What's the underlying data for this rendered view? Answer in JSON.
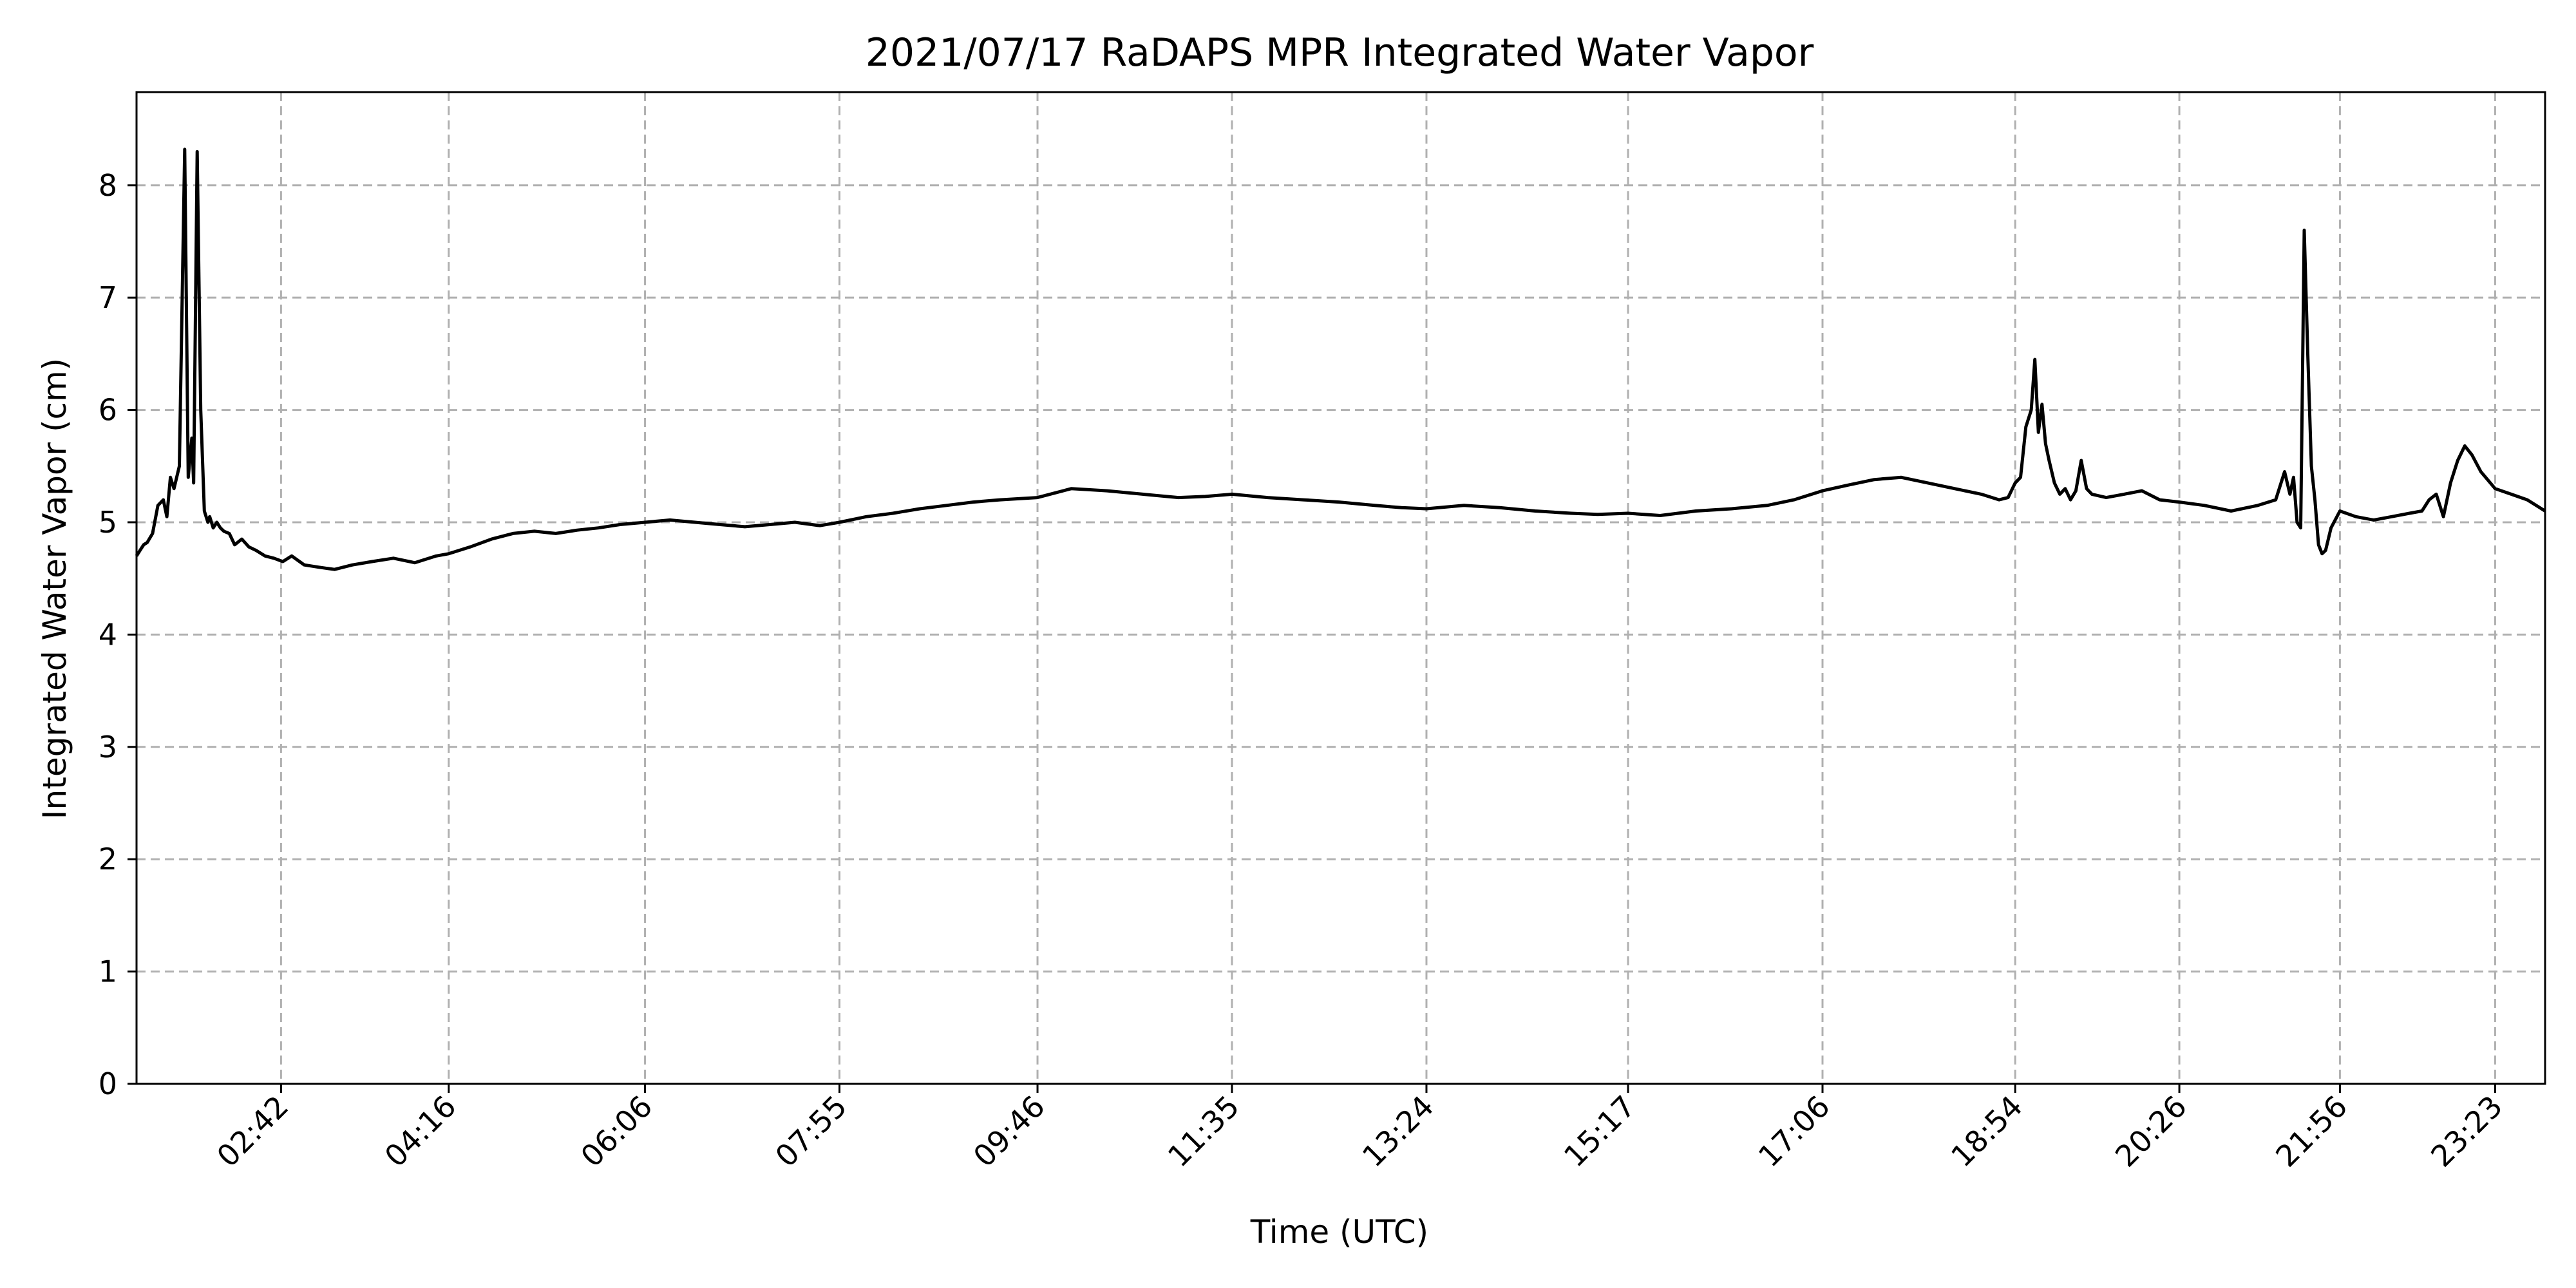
{
  "chart_data": {
    "type": "line",
    "title": "2021/07/17 RaDAPS MPR Integrated Water Vapor",
    "xlabel": "Time (UTC)",
    "ylabel": "Integrated Water Vapor (cm)",
    "xlim": [
      "01:21",
      "23:51"
    ],
    "ylim": [
      0,
      8.83
    ],
    "y_ticks": [
      0,
      1,
      2,
      3,
      4,
      5,
      6,
      7,
      8
    ],
    "x_ticks": [
      "02:42",
      "04:16",
      "06:06",
      "07:55",
      "09:46",
      "11:35",
      "13:24",
      "15:17",
      "17:06",
      "18:54",
      "20:26",
      "21:56",
      "23:23"
    ],
    "grid": true,
    "line_color": "#000000",
    "grid_color": "#b0b0b0",
    "series": [
      {
        "x": [
          "01:21",
          "01:23",
          "01:25",
          "01:27",
          "01:30",
          "01:33",
          "01:36",
          "01:38",
          "01:40",
          "01:42",
          "01:45",
          "01:48",
          "01:50",
          "01:52",
          "01:53",
          "01:55",
          "01:57",
          "01:59",
          "02:01",
          "02:02",
          "02:04",
          "02:06",
          "02:08",
          "02:10",
          "02:13",
          "02:16",
          "02:20",
          "02:24",
          "02:28",
          "02:33",
          "02:38",
          "02:43",
          "02:48",
          "02:55",
          "03:03",
          "03:12",
          "03:22",
          "03:33",
          "03:45",
          "03:57",
          "04:09",
          "04:16",
          "04:28",
          "04:40",
          "04:52",
          "05:04",
          "05:16",
          "05:28",
          "05:40",
          "05:52",
          "06:06",
          "06:20",
          "06:34",
          "06:48",
          "07:02",
          "07:16",
          "07:30",
          "07:44",
          "07:55",
          "08:10",
          "08:25",
          "08:40",
          "08:55",
          "09:10",
          "09:25",
          "09:46",
          "10:05",
          "10:25",
          "10:45",
          "11:05",
          "11:20",
          "11:35",
          "11:55",
          "12:15",
          "12:35",
          "12:55",
          "13:10",
          "13:24",
          "13:45",
          "14:05",
          "14:25",
          "14:45",
          "15:00",
          "15:17",
          "15:35",
          "15:55",
          "16:15",
          "16:35",
          "16:50",
          "17:06",
          "17:20",
          "17:35",
          "17:50",
          "18:05",
          "18:20",
          "18:35",
          "18:45",
          "18:50",
          "18:54",
          "18:57",
          "19:00",
          "19:03",
          "19:05",
          "19:07",
          "19:09",
          "19:11",
          "19:13",
          "19:16",
          "19:19",
          "19:22",
          "19:25",
          "19:28",
          "19:31",
          "19:34",
          "19:37",
          "19:45",
          "19:55",
          "20:05",
          "20:15",
          "20:26",
          "20:40",
          "20:55",
          "21:10",
          "21:20",
          "21:25",
          "21:28",
          "21:30",
          "21:32",
          "21:34",
          "21:36",
          "21:38",
          "21:40",
          "21:42",
          "21:44",
          "21:46",
          "21:48",
          "21:51",
          "21:56",
          "22:05",
          "22:15",
          "22:25",
          "22:35",
          "22:42",
          "22:46",
          "22:50",
          "22:54",
          "22:58",
          "23:02",
          "23:06",
          "23:10",
          "23:15",
          "23:23",
          "23:32",
          "23:41",
          "23:51"
        ],
        "y": [
          4.7,
          4.75,
          4.8,
          4.82,
          4.9,
          5.15,
          5.2,
          5.05,
          5.4,
          5.3,
          5.5,
          8.32,
          5.4,
          5.75,
          5.35,
          8.3,
          6.0,
          5.1,
          5.0,
          5.05,
          4.95,
          5.0,
          4.95,
          4.92,
          4.9,
          4.8,
          4.85,
          4.78,
          4.75,
          4.7,
          4.68,
          4.65,
          4.7,
          4.62,
          4.6,
          4.58,
          4.62,
          4.65,
          4.68,
          4.64,
          4.7,
          4.72,
          4.78,
          4.85,
          4.9,
          4.92,
          4.9,
          4.93,
          4.95,
          4.98,
          5.0,
          5.02,
          5.0,
          4.98,
          4.96,
          4.98,
          5.0,
          4.97,
          5.0,
          5.05,
          5.08,
          5.12,
          5.15,
          5.18,
          5.2,
          5.22,
          5.3,
          5.28,
          5.25,
          5.22,
          5.23,
          5.25,
          5.22,
          5.2,
          5.18,
          5.15,
          5.13,
          5.12,
          5.15,
          5.13,
          5.1,
          5.08,
          5.07,
          5.08,
          5.06,
          5.1,
          5.12,
          5.15,
          5.2,
          5.28,
          5.33,
          5.38,
          5.4,
          5.35,
          5.3,
          5.25,
          5.2,
          5.22,
          5.35,
          5.4,
          5.85,
          6.0,
          6.45,
          5.8,
          6.05,
          5.7,
          5.55,
          5.35,
          5.25,
          5.3,
          5.2,
          5.28,
          5.55,
          5.3,
          5.25,
          5.22,
          5.25,
          5.28,
          5.2,
          5.18,
          5.15,
          5.1,
          5.15,
          5.2,
          5.45,
          5.25,
          5.4,
          5.0,
          4.95,
          7.6,
          6.5,
          5.5,
          5.2,
          4.8,
          4.72,
          4.75,
          4.95,
          5.1,
          5.05,
          5.02,
          5.05,
          5.08,
          5.1,
          5.2,
          5.25,
          5.05,
          5.35,
          5.55,
          5.68,
          5.6,
          5.45,
          5.3,
          5.25,
          5.2,
          5.1
        ]
      }
    ]
  }
}
